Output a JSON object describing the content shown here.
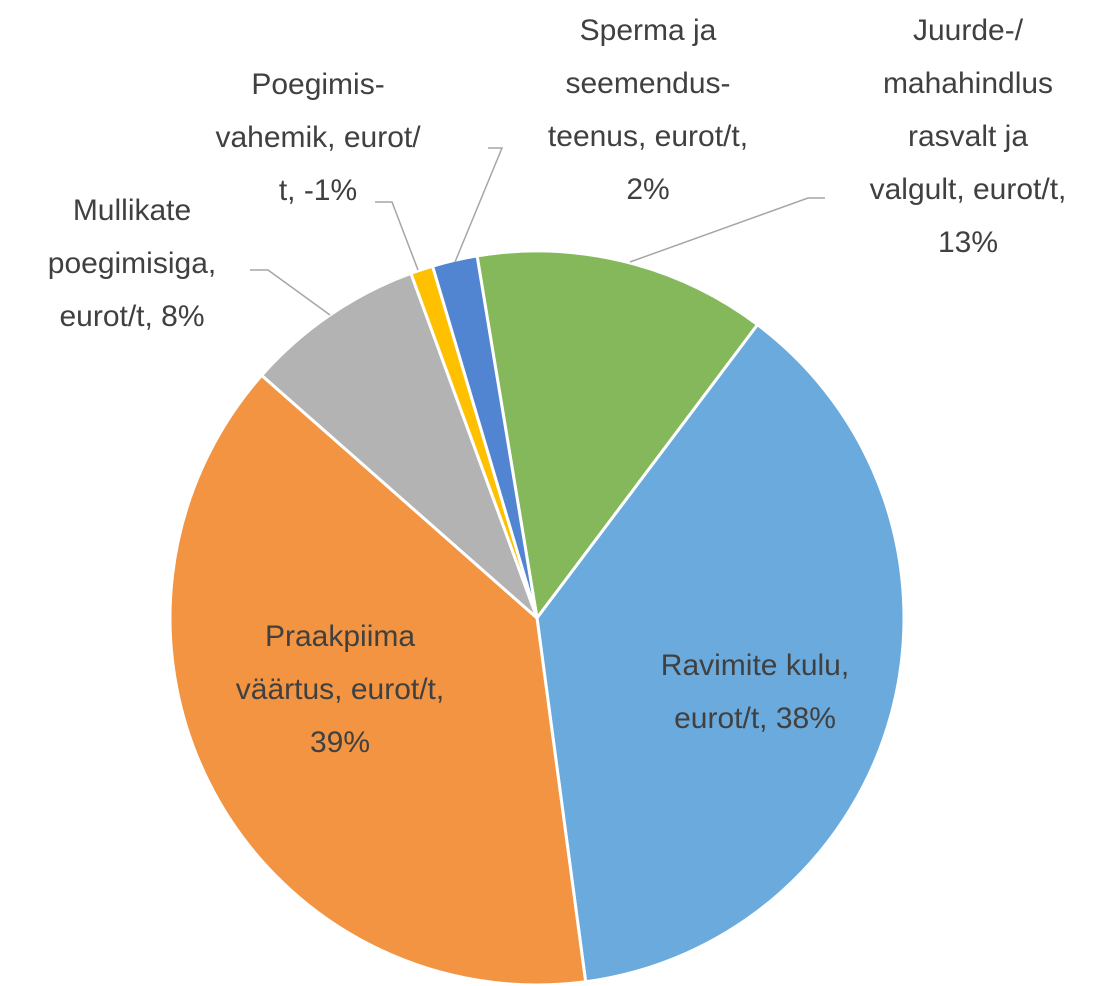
{
  "chart_data": {
    "type": "pie",
    "value_labels": [
      "Juurde-/mahahindlus rasvalt ja valgult, eurot/t, 13%",
      "Ravimite kulu, eurot/t, 38%",
      "Praakpiima väärtus, eurot/t, 39%",
      "Mullikate poegimisiga, eurot/t, 8%",
      "Poegimis-vahemik, eurot/t, -1%",
      "Sperma ja seemendus-teenus, eurot/t, 2%"
    ],
    "values": [
      13,
      38,
      39,
      8,
      -1,
      2
    ],
    "colors": [
      "#84b85a",
      "#6baadc",
      "#f29441",
      "#b3b3b3",
      "#ffc000",
      "#5184d1"
    ]
  }
}
